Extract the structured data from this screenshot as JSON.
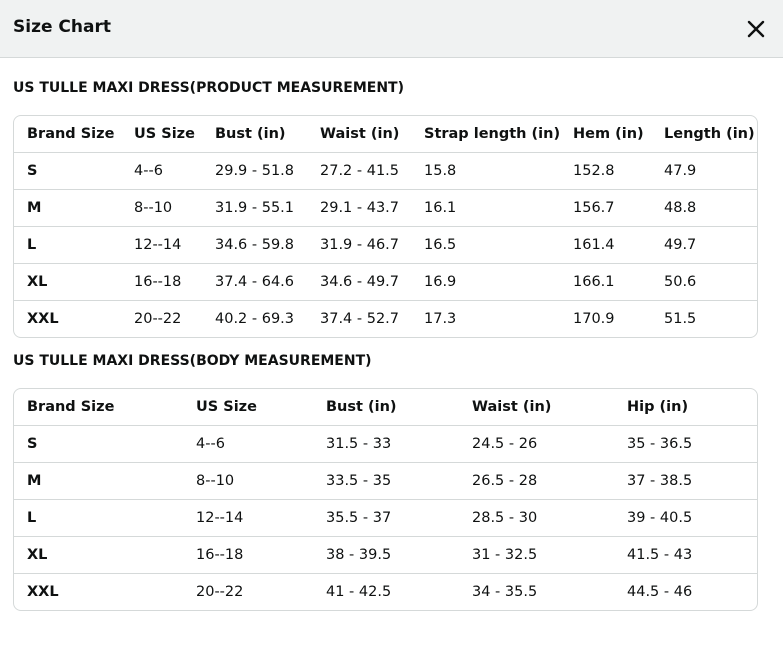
{
  "header": {
    "title": "Size Chart"
  },
  "sections": [
    {
      "title": "US TULLE MAXI DRESS(PRODUCT MEASUREMENT)",
      "columns": [
        "Brand Size",
        "US Size",
        "Bust (in)",
        "Waist (in)",
        "Strap length (in)",
        "Hem (in)",
        "Length (in)"
      ],
      "rows": [
        [
          "S",
          "4--6",
          "29.9 - 51.8",
          "27.2 - 41.5",
          "15.8",
          "152.8",
          "47.9"
        ],
        [
          "M",
          "8--10",
          "31.9 - 55.1",
          "29.1 - 43.7",
          "16.1",
          "156.7",
          "48.8"
        ],
        [
          "L",
          "12--14",
          "34.6 - 59.8",
          "31.9 - 46.7",
          "16.5",
          "161.4",
          "49.7"
        ],
        [
          "XL",
          "16--18",
          "37.4 - 64.6",
          "34.6 - 49.7",
          "16.9",
          "166.1",
          "50.6"
        ],
        [
          "XXL",
          "20--22",
          "40.2 - 69.3",
          "37.4 - 52.7",
          "17.3",
          "170.9",
          "51.5"
        ]
      ]
    },
    {
      "title": "US TULLE MAXI DRESS(BODY MEASUREMENT)",
      "columns": [
        "Brand Size",
        "US Size",
        "Bust (in)",
        "Waist (in)",
        "Hip (in)"
      ],
      "rows": [
        [
          "S",
          "4--6",
          "31.5 - 33",
          "24.5 - 26",
          "35 - 36.5"
        ],
        [
          "M",
          "8--10",
          "33.5 - 35",
          "26.5 - 28",
          "37 - 38.5"
        ],
        [
          "L",
          "12--14",
          "35.5 - 37",
          "28.5 - 30",
          "39 - 40.5"
        ],
        [
          "XL",
          "16--18",
          "38 - 39.5",
          "31 - 32.5",
          "41.5 - 43"
        ],
        [
          "XXL",
          "20--22",
          "41 - 42.5",
          "34 - 35.5",
          "44.5 - 46"
        ]
      ]
    }
  ]
}
